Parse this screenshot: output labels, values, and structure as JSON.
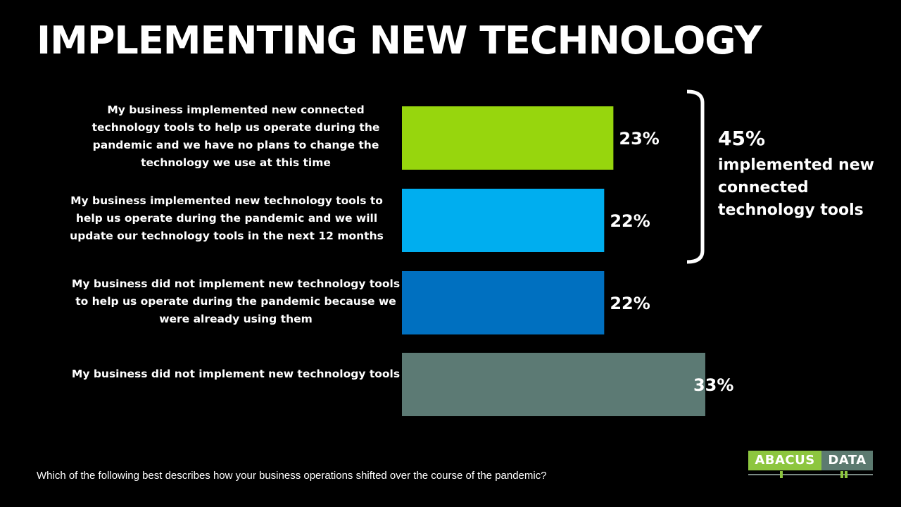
{
  "title": "IMPLEMENTING NEW TECHNOLOGY",
  "question": "Which of the following  best describes how your business operations shifted over the course of the pandemic?",
  "brace": {
    "total": "45%",
    "description": "implemented new connected technology tools"
  },
  "logo": {
    "left": "ABACUS",
    "right": "DATA"
  },
  "colors": {
    "background": "#000000",
    "bar_1": "#97d60d",
    "bar_2": "#00aeef",
    "bar_3": "#0070c0",
    "bar_4": "#5c7a74",
    "logo_green": "#8dc63f",
    "logo_grey": "#5c7a70"
  },
  "chart_data": {
    "type": "bar",
    "orientation": "horizontal",
    "title": "IMPLEMENTING NEW TECHNOLOGY",
    "xlabel": "",
    "ylabel": "",
    "xlim": [
      0,
      33
    ],
    "categories": [
      "My business implemented new connected technology tools to help us operate during the pandemic and we have no plans to change the technology we use at this time",
      "My business implemented new technology tools to help us operate during the pandemic and we will update our technology tools in the next 12 months",
      "My business did not implement new technology tools to help us operate during the pandemic because we were already using them",
      "My business did not implement new technology tools"
    ],
    "values": [
      23,
      22,
      22,
      33
    ],
    "value_labels": [
      "23%",
      "22%",
      "22%",
      "33%"
    ],
    "bar_colors": [
      "#97d60d",
      "#00aeef",
      "#0070c0",
      "#5c7a74"
    ],
    "annotation": "45% implemented new connected technology tools",
    "grid": false,
    "legend": "none"
  }
}
